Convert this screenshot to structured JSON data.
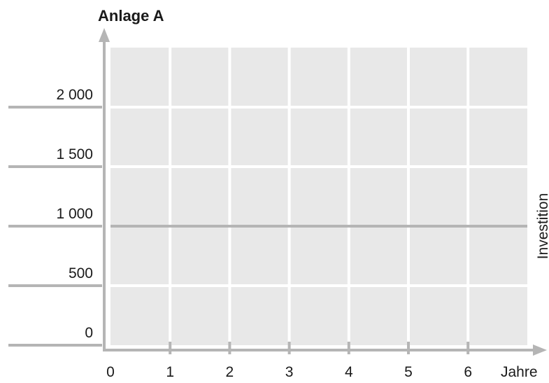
{
  "chart_data": {
    "type": "line",
    "title": "Anlage A",
    "xlabel": "Jahre",
    "ylabel": "",
    "x_ticks": [
      "0",
      "1",
      "2",
      "3",
      "4",
      "5",
      "6"
    ],
    "y_ticks": [
      "0",
      "500",
      "1 000",
      "1 500",
      "2 000"
    ],
    "xlim": [
      0,
      7
    ],
    "ylim": [
      0,
      2000
    ],
    "grid": true,
    "series": [
      {
        "name": "Investition",
        "x": [
          0,
          7
        ],
        "y": [
          1000,
          1000
        ]
      }
    ],
    "colors": {
      "plot_background": "#e8e8e8",
      "grid": "#ffffff",
      "axis": "#b5b5b5",
      "series_line": "#b5b5b5",
      "text": "#1a1a1a"
    }
  }
}
